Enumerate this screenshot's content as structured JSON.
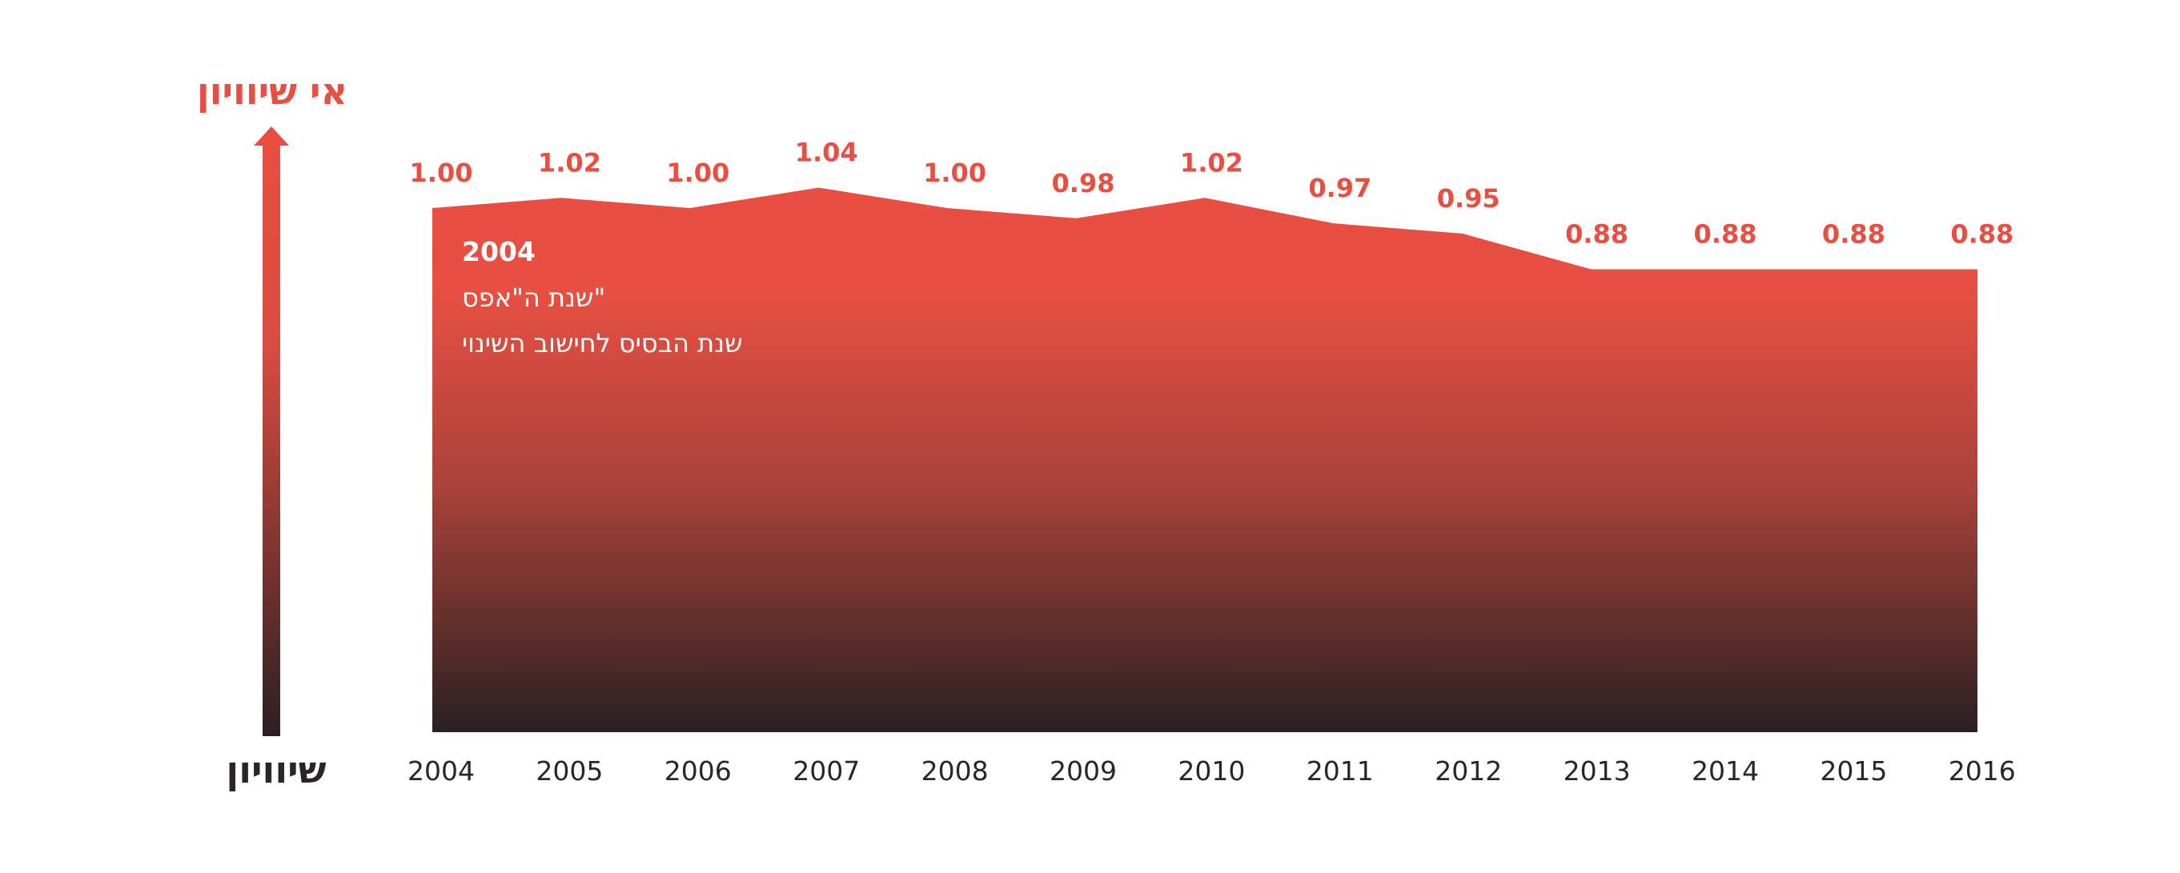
{
  "colors": {
    "accent": "#e94e41",
    "dark": "#2a2526",
    "white": "#ffffff"
  },
  "axis": {
    "top_label": "אי שיוויון",
    "bottom_label": "שיוויון"
  },
  "annotation": {
    "year": "2004",
    "line1": "שנת ה\"אפס\"",
    "line2": "שנת הבסיס לחישוב השינוי"
  },
  "chart_data": {
    "type": "area",
    "x": [
      "2004",
      "2005",
      "2006",
      "2007",
      "2008",
      "2009",
      "2010",
      "2011",
      "2012",
      "2013",
      "2014",
      "2015",
      "2016"
    ],
    "values": [
      1.0,
      1.02,
      1.0,
      1.04,
      1.0,
      0.98,
      1.02,
      0.97,
      0.95,
      0.88,
      0.88,
      0.88,
      0.88
    ],
    "value_labels": [
      "1.00",
      "1.02",
      "1.00",
      "1.04",
      "1.00",
      "0.98",
      "1.02",
      "0.97",
      "0.95",
      "0.88",
      "0.88",
      "0.88",
      "0.88"
    ],
    "ylabel_top": "אי שיוויון",
    "ylabel_bottom": "שיוויון",
    "grid": false,
    "legend": "none"
  }
}
